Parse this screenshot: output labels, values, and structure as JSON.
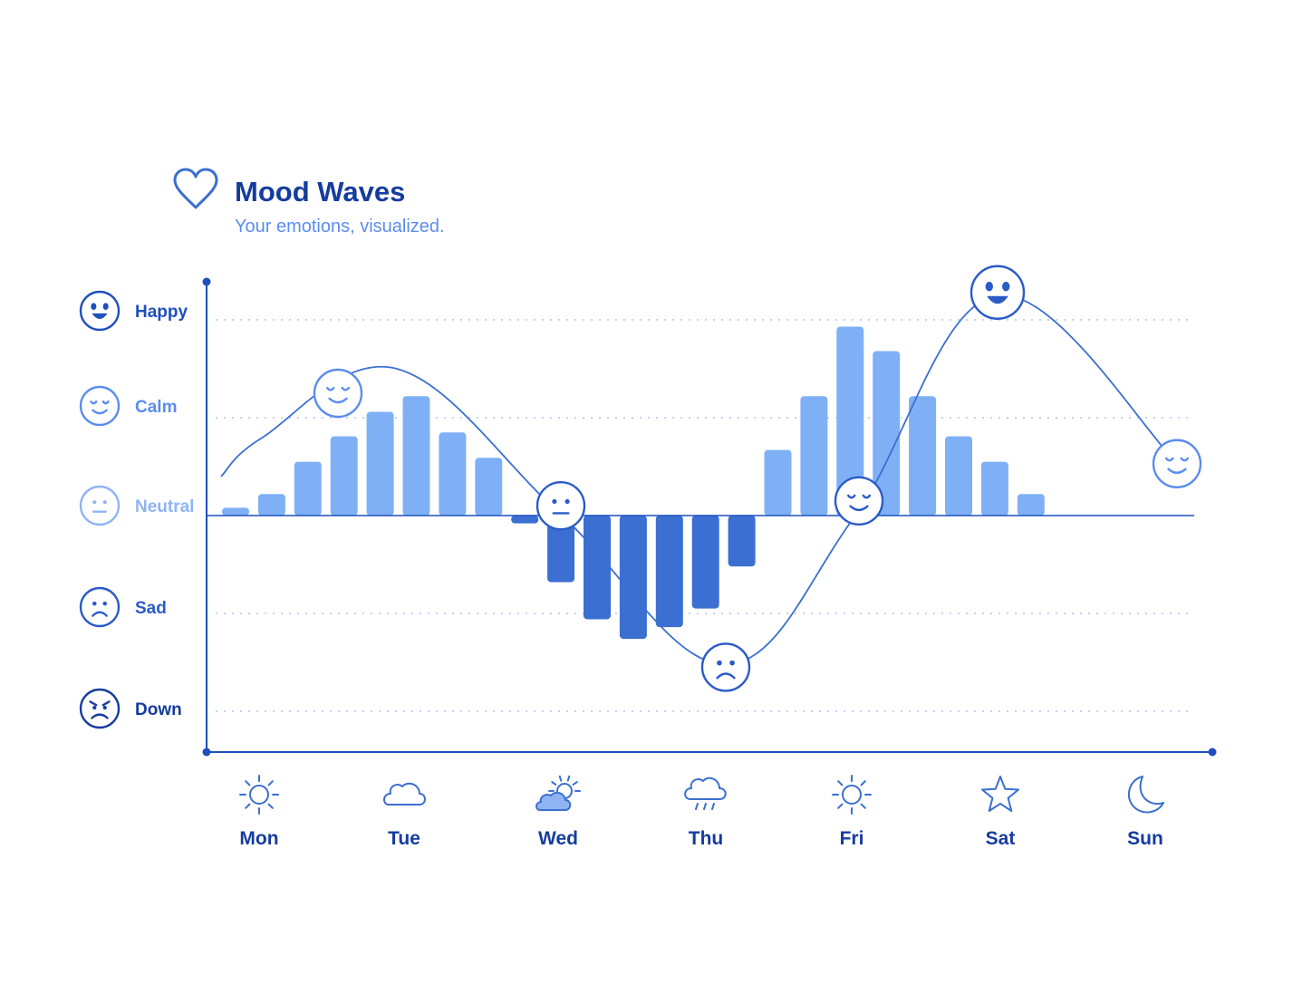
{
  "header": {
    "title": "Mood Waves",
    "subtitle": "Your emotions, visualized.",
    "icon": "heart-outline-icon"
  },
  "colors": {
    "primary": "#1f4fbf",
    "title": "#153c9e",
    "subtitle": "#5b8def",
    "bar_positive": "#7fb0f6",
    "bar_negative": "#3b6fd1",
    "grid": "#a9c6f5",
    "axis": "#1f4fbf"
  },
  "chart_data": {
    "type": "bar",
    "y_levels": [
      {
        "label": "Happy",
        "value": 2,
        "icon": "happy-face-icon"
      },
      {
        "label": "Calm",
        "value": 1,
        "icon": "calm-face-icon"
      },
      {
        "label": "Neutral",
        "value": 0,
        "icon": "neutral-face-icon"
      },
      {
        "label": "Sad",
        "value": -1,
        "icon": "sad-face-icon"
      },
      {
        "label": "Down",
        "value": -2,
        "icon": "down-face-icon"
      }
    ],
    "ylim": [
      -2.4,
      2.4
    ],
    "grid": true,
    "categories": [
      "Mon",
      "Tue",
      "Wed",
      "Thu",
      "Fri",
      "Sat",
      "Sun"
    ],
    "category_icons": [
      "sun-icon",
      "cloud-icon",
      "partly-cloudy-icon",
      "rain-cloud-icon",
      "sun-icon",
      "star-icon",
      "moon-icon"
    ],
    "bars": [
      0.08,
      0.22,
      0.55,
      0.81,
      1.06,
      1.22,
      0.85,
      0.59,
      -0.08,
      -0.68,
      -1.06,
      -1.26,
      -1.14,
      -0.95,
      -0.52,
      0.67,
      1.22,
      1.93,
      1.68,
      1.22,
      0.81,
      0.55,
      0.22
    ],
    "trend_line": [
      0.4,
      0.8,
      1.5,
      0.0,
      -1.52,
      0.0,
      2.25,
      0.55
    ],
    "markers": [
      {
        "day": "Tue",
        "value": 1.25,
        "mood": "Calm"
      },
      {
        "day": "Wed",
        "value": 0.1,
        "mood": "Neutral"
      },
      {
        "day": "Thu",
        "value": -1.55,
        "mood": "Sad"
      },
      {
        "day": "Fri",
        "value": 0.15,
        "mood": "Calm"
      },
      {
        "day": "Sat",
        "value": 2.28,
        "mood": "Happy"
      },
      {
        "day": "Sun",
        "value": 0.53,
        "mood": "Calm"
      }
    ]
  }
}
